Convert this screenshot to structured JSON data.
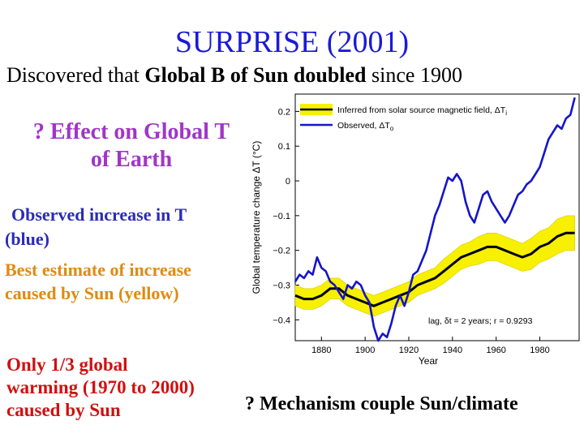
{
  "slide": {
    "title": "SURPRISE (2001)",
    "subtitle_pre": "Discovered that ",
    "subtitle_bold": "Global B of Sun doubled",
    "subtitle_post": " since 1900",
    "effect_line1": "? Effect on Global T",
    "effect_line2": "of Earth",
    "observed_line1": "Observed increase in T",
    "observed_line2": "(blue)",
    "best_line1": "Best estimate of increase",
    "best_line2": "caused by Sun (yellow)",
    "only_line1": "Only 1/3 global",
    "only_line2": "warming (1970 to 2000)",
    "only_line3": "caused by Sun",
    "mechanism": "? Mechanism couple Sun/climate"
  },
  "colors": {
    "title": "#1a1ad8",
    "effect": "#a035c8",
    "observed_text": "#2b2bb8",
    "best_text": "#e08a10",
    "only_text": "#d01010",
    "observed_line": "#1515c8",
    "inferred_band": "#f7f000",
    "inferred_line": "#000000"
  },
  "chart_data": {
    "type": "line",
    "xlabel": "Year",
    "ylabel": "Global temperature change ΔT  (°C)",
    "xlim": [
      1868,
      1998
    ],
    "ylim": [
      -0.46,
      0.25
    ],
    "xticks": [
      1880,
      1900,
      1920,
      1940,
      1960,
      1980
    ],
    "yticks": [
      -0.4,
      -0.3,
      -0.2,
      -0.1,
      0,
      0.1,
      0.2
    ],
    "ytick_labels": [
      "−0.4",
      "−0.3",
      "−0.2",
      "−0.1",
      "0",
      "0.1",
      "0.2"
    ],
    "legend": [
      "Inferred from solar source magnetic field, ΔT",
      "Observed, ΔT"
    ],
    "legend_subscripts": [
      "i",
      "o"
    ],
    "annotation": "lag, δt = 2 years; r = 0.9293",
    "series": [
      {
        "name": "Observed, ΔTo",
        "x": [
          1868,
          1870,
          1872,
          1874,
          1876,
          1878,
          1880,
          1882,
          1884,
          1886,
          1888,
          1890,
          1892,
          1894,
          1896,
          1898,
          1900,
          1902,
          1904,
          1906,
          1908,
          1910,
          1912,
          1914,
          1916,
          1918,
          1920,
          1922,
          1924,
          1926,
          1928,
          1930,
          1932,
          1934,
          1936,
          1938,
          1940,
          1942,
          1944,
          1946,
          1948,
          1950,
          1952,
          1954,
          1956,
          1958,
          1960,
          1962,
          1964,
          1966,
          1968,
          1970,
          1972,
          1974,
          1976,
          1978,
          1980,
          1982,
          1984,
          1986,
          1988,
          1990,
          1992,
          1994,
          1996
        ],
        "values": [
          -0.29,
          -0.27,
          -0.28,
          -0.26,
          -0.27,
          -0.22,
          -0.25,
          -0.26,
          -0.29,
          -0.3,
          -0.32,
          -0.34,
          -0.3,
          -0.31,
          -0.29,
          -0.3,
          -0.33,
          -0.35,
          -0.42,
          -0.46,
          -0.44,
          -0.45,
          -0.41,
          -0.36,
          -0.33,
          -0.36,
          -0.32,
          -0.27,
          -0.26,
          -0.23,
          -0.2,
          -0.15,
          -0.1,
          -0.07,
          -0.03,
          0.01,
          0.0,
          0.02,
          0.0,
          -0.06,
          -0.1,
          -0.12,
          -0.08,
          -0.04,
          -0.03,
          -0.06,
          -0.08,
          -0.1,
          -0.12,
          -0.1,
          -0.07,
          -0.04,
          -0.03,
          -0.01,
          0.0,
          0.02,
          0.04,
          0.08,
          0.12,
          0.14,
          0.16,
          0.15,
          0.18,
          0.19,
          0.24
        ]
      },
      {
        "name": "Inferred from solar source magnetic field, ΔTi",
        "x": [
          1868,
          1872,
          1876,
          1880,
          1884,
          1888,
          1892,
          1896,
          1900,
          1904,
          1908,
          1912,
          1916,
          1920,
          1924,
          1928,
          1932,
          1936,
          1940,
          1944,
          1948,
          1952,
          1956,
          1960,
          1964,
          1968,
          1972,
          1976,
          1980,
          1984,
          1988,
          1992,
          1996
        ],
        "values": [
          -0.33,
          -0.34,
          -0.34,
          -0.33,
          -0.31,
          -0.31,
          -0.33,
          -0.34,
          -0.35,
          -0.36,
          -0.35,
          -0.34,
          -0.33,
          -0.32,
          -0.3,
          -0.29,
          -0.28,
          -0.26,
          -0.24,
          -0.22,
          -0.21,
          -0.2,
          -0.19,
          -0.19,
          -0.2,
          -0.21,
          -0.22,
          -0.21,
          -0.19,
          -0.18,
          -0.16,
          -0.15,
          -0.15
        ],
        "band_halfwidth": [
          0.03,
          0.03,
          0.03,
          0.03,
          0.03,
          0.03,
          0.03,
          0.03,
          0.03,
          0.03,
          0.03,
          0.03,
          0.03,
          0.03,
          0.03,
          0.03,
          0.03,
          0.035,
          0.035,
          0.035,
          0.035,
          0.04,
          0.04,
          0.04,
          0.04,
          0.04,
          0.04,
          0.045,
          0.045,
          0.045,
          0.05,
          0.05,
          0.05
        ]
      }
    ]
  }
}
